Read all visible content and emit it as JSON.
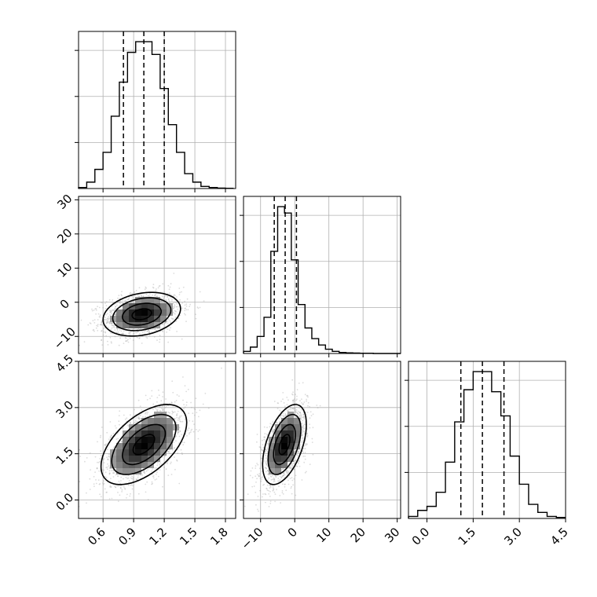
{
  "chart_data": {
    "type": "corner",
    "title": "",
    "grid": true,
    "colors": {
      "line": "#000000",
      "grid": "#b0b0b0",
      "scatter": "#9a9a9a",
      "axis": "#000000"
    },
    "parameters": [
      {
        "index": 0,
        "range": [
          0.36,
          1.9
        ],
        "ticks": [
          "0.6",
          "0.9",
          "1.2",
          "1.5",
          "1.8"
        ],
        "tick_values": [
          0.6,
          0.9,
          1.2,
          1.5,
          1.8
        ],
        "quantiles": [
          0.8,
          1.0,
          1.2
        ],
        "histogram": {
          "bins": [
            0.36,
            0.44,
            0.52,
            0.6,
            0.68,
            0.76,
            0.84,
            0.92,
            1.0,
            1.08,
            1.16,
            1.24,
            1.32,
            1.4,
            1.48,
            1.56,
            1.64,
            1.72,
            1.8,
            1.88
          ],
          "counts": [
            0.5,
            3,
            9,
            17,
            34,
            50,
            64,
            69,
            69,
            63,
            47,
            30,
            17,
            7,
            3,
            1,
            0.5,
            0.2,
            0.1
          ]
        }
      },
      {
        "index": 1,
        "range": [
          -15,
          31
        ],
        "ticks": [
          "-10",
          "0",
          "10",
          "20",
          "30"
        ],
        "tick_values": [
          -10,
          0,
          10,
          20,
          30
        ],
        "quantiles": [
          -6,
          -2.8,
          0.5
        ],
        "histogram": {
          "bins": [
            -15,
            -13,
            -11,
            -9,
            -7,
            -5,
            -3,
            -1,
            1,
            3,
            5,
            7,
            9,
            11,
            13,
            15,
            17,
            19,
            21,
            23,
            25,
            27,
            29,
            31
          ],
          "counts": [
            1,
            3,
            8,
            17,
            48,
            69,
            66,
            44,
            23,
            12,
            7,
            4,
            2,
            1,
            0.5,
            0.3,
            0.2,
            0.1,
            0.1,
            0,
            0,
            0,
            0
          ]
        }
      },
      {
        "index": 2,
        "range": [
          -0.6,
          4.5
        ],
        "ticks": [
          "0.0",
          "1.5",
          "3.0",
          "4.5"
        ],
        "tick_values": [
          0.0,
          1.5,
          3.0,
          4.5
        ],
        "quantiles": [
          1.1,
          1.8,
          2.5
        ],
        "histogram": {
          "bins": [
            -0.6,
            -0.3,
            0.0,
            0.3,
            0.6,
            0.9,
            1.2,
            1.5,
            1.8,
            2.1,
            2.4,
            2.7,
            3.0,
            3.3,
            3.6,
            3.9,
            4.2,
            4.5
          ],
          "counts": [
            1,
            4,
            6,
            13,
            28,
            48,
            64,
            73,
            73,
            63,
            51,
            31,
            17,
            7,
            3,
            1,
            0.5
          ]
        }
      }
    ],
    "y_tick_labels": {
      "row1": [
        "-10",
        "0",
        "10",
        "20",
        "30"
      ],
      "row2": [
        "0.0",
        "1.5",
        "3.0",
        "4.5"
      ]
    },
    "panels_2d": [
      {
        "x_param": 0,
        "y_param": 1,
        "mean": [
          0.98,
          -3.5
        ],
        "sd": [
          0.19,
          3.2
        ],
        "corr": 0.25
      },
      {
        "x_param": 0,
        "y_param": 2,
        "mean": [
          1.0,
          1.8
        ],
        "sd": [
          0.21,
          0.65
        ],
        "corr": 0.55
      },
      {
        "x_param": 1,
        "y_param": 2,
        "mean": [
          -3.0,
          1.8
        ],
        "sd": [
          3.2,
          0.65
        ],
        "corr": 0.5
      }
    ]
  }
}
